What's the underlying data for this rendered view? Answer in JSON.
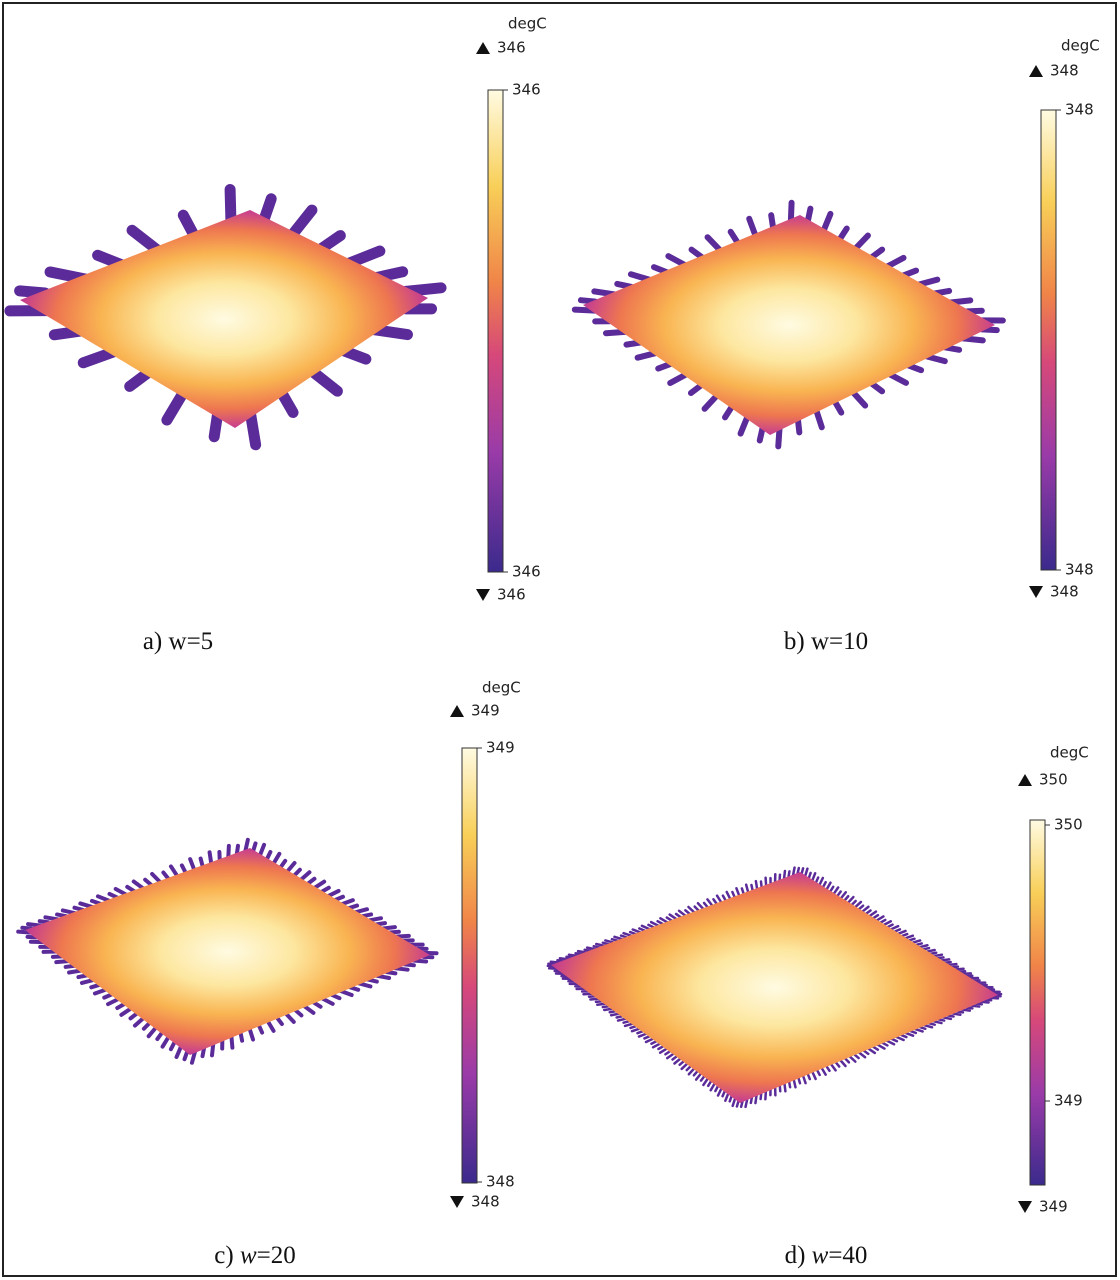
{
  "panels": [
    {
      "unit": "degC",
      "max_marker": 346,
      "ticks": [
        346,
        346
      ],
      "min_marker": 346,
      "caption": {
        "prefix": "a)",
        "variable": "w",
        "suffix": "=5"
      }
    },
    {
      "unit": "degC",
      "max_marker": 348,
      "ticks": [
        348,
        348
      ],
      "min_marker": 348,
      "caption": {
        "prefix": "b)",
        "variable": "w",
        "suffix": "=10"
      }
    },
    {
      "unit": "degC",
      "max_marker": 349,
      "ticks": [
        349,
        348
      ],
      "min_marker": 348,
      "caption": {
        "prefix": "c)",
        "variable": "w",
        "suffix": "=20"
      }
    },
    {
      "unit": "degC",
      "max_marker": 350,
      "ticks": [
        350,
        349
      ],
      "min_marker": 349,
      "caption": {
        "prefix": "d)",
        "variable": "w",
        "suffix": "=40"
      }
    }
  ]
}
